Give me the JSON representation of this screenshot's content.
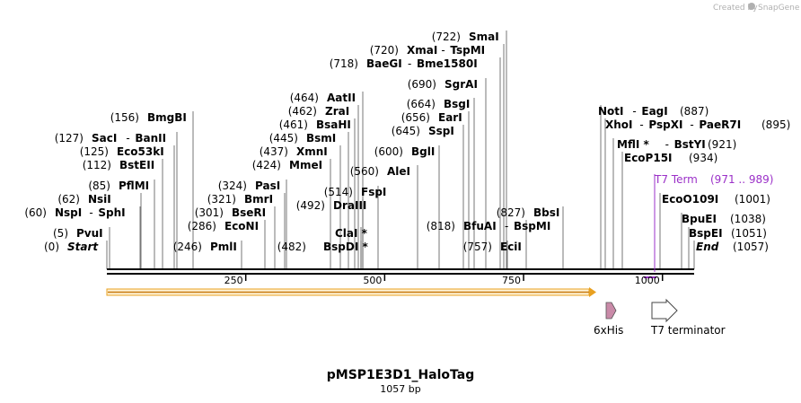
{
  "watermark": {
    "prefix": "Created by",
    "brand": "SnapGene"
  },
  "plasmid": {
    "name": "pMSP1E3D1_HaloTag",
    "length": "1057 bp",
    "total_bp": 1057
  },
  "ruler": {
    "ticks": [
      250,
      500,
      750,
      1000
    ]
  },
  "sites": [
    {
      "pos": "(0)",
      "names": [
        "Start"
      ],
      "bp": 0,
      "style": "italic"
    },
    {
      "pos": "(5)",
      "names": [
        "PvuI"
      ],
      "bp": 5
    },
    {
      "pos": "(60)",
      "names": [
        "NspI",
        "SphI"
      ],
      "bp": 60
    },
    {
      "pos": "(62)",
      "names": [
        "NsiI"
      ],
      "bp": 62
    },
    {
      "pos": "(85)",
      "names": [
        "PflMI"
      ],
      "bp": 85
    },
    {
      "pos": "(112)",
      "names": [
        "BstEII"
      ],
      "bp": 112
    },
    {
      "pos": "(125)",
      "names": [
        "Eco53kI"
      ],
      "bp": 125
    },
    {
      "pos": "(127)",
      "names": [
        "SacI",
        "BanII"
      ],
      "bp": 127
    },
    {
      "pos": "(156)",
      "names": [
        "BmgBI"
      ],
      "bp": 156
    },
    {
      "pos": "(246)",
      "names": [
        "PmlI"
      ],
      "bp": 246
    },
    {
      "pos": "(286)",
      "names": [
        "EcoNI"
      ],
      "bp": 286
    },
    {
      "pos": "(301)",
      "names": [
        "BseRI"
      ],
      "bp": 301
    },
    {
      "pos": "(321)",
      "names": [
        "BmrI"
      ],
      "bp": 321
    },
    {
      "pos": "(324)",
      "names": [
        "PasI"
      ],
      "bp": 324
    },
    {
      "pos": "(424)",
      "names": [
        "MmeI"
      ],
      "bp": 424
    },
    {
      "pos": "(437)",
      "names": [
        "XmnI"
      ],
      "bp": 437
    },
    {
      "pos": "(445)",
      "names": [
        "BsmI"
      ],
      "bp": 445
    },
    {
      "pos": "(461)",
      "names": [
        "BsaHI"
      ],
      "bp": 461
    },
    {
      "pos": "(462)",
      "names": [
        "ZraI"
      ],
      "bp": 462
    },
    {
      "pos": "(464)",
      "names": [
        "AatII"
      ],
      "bp": 464
    },
    {
      "pos": "(482)",
      "names": [
        "BspDI *"
      ],
      "bp": 482
    },
    {
      "pos": "",
      "names": [
        "ClaI *"
      ],
      "bp": 482
    },
    {
      "pos": "(492)",
      "names": [
        "DraIII"
      ],
      "bp": 492
    },
    {
      "pos": "(514)",
      "names": [
        "FspI"
      ],
      "bp": 514
    },
    {
      "pos": "(560)",
      "names": [
        "AleI"
      ],
      "bp": 560
    },
    {
      "pos": "(600)",
      "names": [
        "BglI"
      ],
      "bp": 600
    },
    {
      "pos": "(645)",
      "names": [
        "SspI"
      ],
      "bp": 645
    },
    {
      "pos": "(656)",
      "names": [
        "EarI"
      ],
      "bp": 656
    },
    {
      "pos": "(664)",
      "names": [
        "BsgI"
      ],
      "bp": 664
    },
    {
      "pos": "(690)",
      "names": [
        "SgrAI"
      ],
      "bp": 690
    },
    {
      "pos": "(718)",
      "names": [
        "BaeGI",
        "Bme1580I"
      ],
      "bp": 718
    },
    {
      "pos": "(720)",
      "names": [
        "XmaI",
        "TspMI"
      ],
      "bp": 720
    },
    {
      "pos": "(722)",
      "names": [
        "SmaI"
      ],
      "bp": 722
    },
    {
      "pos": "(757)",
      "names": [
        "EciI"
      ],
      "bp": 757
    },
    {
      "pos": "(818)",
      "names": [
        "BfuAI",
        "BspMI"
      ],
      "bp": 818
    },
    {
      "pos": "(827)",
      "names": [
        "BbsI"
      ],
      "bp": 827
    },
    {
      "pos": "(887)",
      "names": [
        "NotI",
        "EagI"
      ],
      "bp": 887
    },
    {
      "pos": "(895)",
      "names": [
        "XhoI",
        "PspXI",
        "PaeR7I"
      ],
      "bp": 895
    },
    {
      "pos": "(921)",
      "names": [
        "MflI *",
        "BstYI"
      ],
      "bp": 921
    },
    {
      "pos": "(934)",
      "names": [
        "EcoP15I"
      ],
      "bp": 934
    },
    {
      "pos": "(1001)",
      "names": [
        "EcoO109I"
      ],
      "bp": 1001
    },
    {
      "pos": "(1038)",
      "names": [
        "BpuEI"
      ],
      "bp": 1038
    },
    {
      "pos": "(1051)",
      "names": [
        "BspEI"
      ],
      "bp": 1051
    },
    {
      "pos": "(1057)",
      "names": [
        "End"
      ],
      "bp": 1057,
      "style": "italic"
    }
  ],
  "features": {
    "t7_term": {
      "label": "T7 Term",
      "range": "(971 .. 989)",
      "color": "#9b30c8"
    },
    "his_tag": {
      "label": "6xHis",
      "color": "#c98aa8"
    },
    "t7_terminator": {
      "label": "T7 terminator",
      "color": "#ffffff"
    },
    "orf": {
      "color": "#e8a020"
    }
  }
}
